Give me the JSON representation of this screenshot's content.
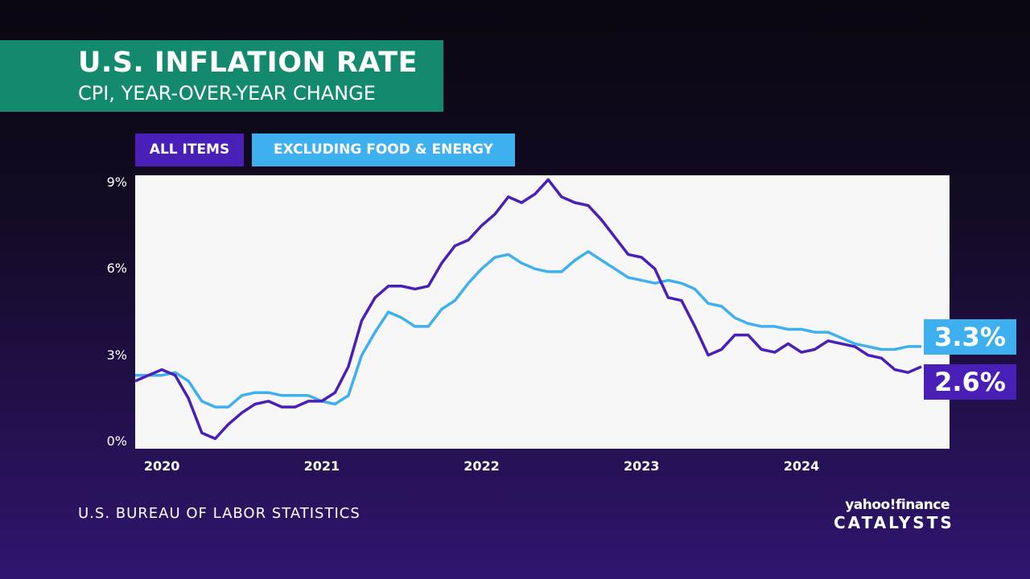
{
  "header": {
    "title": "U.S. INFLATION RATE",
    "subtitle": "CPI, YEAR-OVER-YEAR CHANGE"
  },
  "source": "U.S. BUREAU OF LABOR STATISTICS",
  "logo": {
    "brand": "yahoo!finance",
    "show": "CATALYSTS"
  },
  "colors": {
    "all_items": "#4a1fb8",
    "core": "#3fb0ef",
    "title_bg": "#138a6e"
  },
  "chart_data": {
    "type": "line",
    "title": "U.S. INFLATION RATE",
    "subtitle": "CPI, YEAR-OVER-YEAR CHANGE",
    "xlabel": "",
    "ylabel": "",
    "ylim": [
      -0.25,
      9.25
    ],
    "start_month": "2019-11",
    "x_ticks": [
      {
        "label": "2020",
        "index": 2
      },
      {
        "label": "2021",
        "index": 14
      },
      {
        "label": "2022",
        "index": 26
      },
      {
        "label": "2023",
        "index": 38
      },
      {
        "label": "2024",
        "index": 50
      }
    ],
    "y_ticks": [
      {
        "value": 0,
        "label": "0%"
      },
      {
        "value": 3,
        "label": "3%"
      },
      {
        "value": 6,
        "label": "6%"
      },
      {
        "value": 9,
        "label": "9%"
      }
    ],
    "legend_position": "top-left",
    "series": [
      {
        "name": "ALL ITEMS",
        "color": "#4a1fb8",
        "end_label": "2.6%",
        "values": [
          2.1,
          2.3,
          2.5,
          2.3,
          1.5,
          0.3,
          0.1,
          0.6,
          1.0,
          1.3,
          1.4,
          1.2,
          1.2,
          1.4,
          1.4,
          1.7,
          2.6,
          4.2,
          5.0,
          5.4,
          5.4,
          5.3,
          5.4,
          6.2,
          6.8,
          7.0,
          7.5,
          7.9,
          8.5,
          8.3,
          8.6,
          9.1,
          8.5,
          8.3,
          8.2,
          7.7,
          7.1,
          6.5,
          6.4,
          6.0,
          5.0,
          4.9,
          4.0,
          3.0,
          3.2,
          3.7,
          3.7,
          3.2,
          3.1,
          3.4,
          3.1,
          3.2,
          3.5,
          3.4,
          3.3,
          3.0,
          2.9,
          2.5,
          2.4,
          2.6
        ]
      },
      {
        "name": "EXCLUDING FOOD & ENERGY",
        "color": "#3fb0ef",
        "end_label": "3.3%",
        "values": [
          2.3,
          2.3,
          2.3,
          2.4,
          2.1,
          1.4,
          1.2,
          1.2,
          1.6,
          1.7,
          1.7,
          1.6,
          1.6,
          1.6,
          1.4,
          1.3,
          1.6,
          3.0,
          3.8,
          4.5,
          4.3,
          4.0,
          4.0,
          4.6,
          4.9,
          5.5,
          6.0,
          6.4,
          6.5,
          6.2,
          6.0,
          5.9,
          5.9,
          6.3,
          6.6,
          6.3,
          6.0,
          5.7,
          5.6,
          5.5,
          5.6,
          5.5,
          5.3,
          4.8,
          4.7,
          4.3,
          4.1,
          4.0,
          4.0,
          3.9,
          3.9,
          3.8,
          3.8,
          3.6,
          3.4,
          3.3,
          3.2,
          3.2,
          3.3,
          3.3
        ]
      }
    ]
  }
}
